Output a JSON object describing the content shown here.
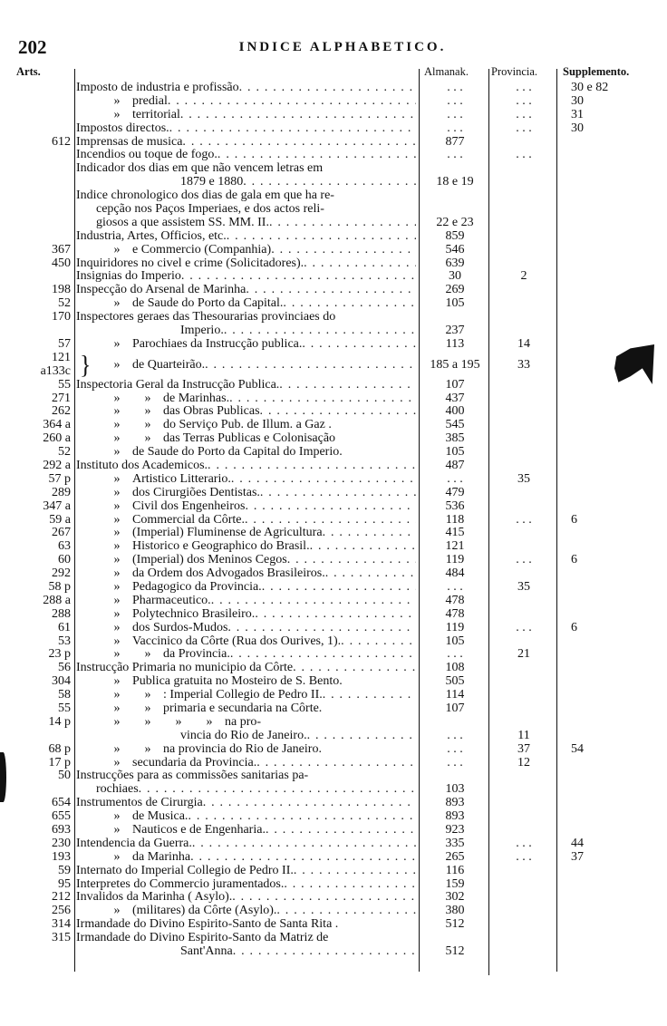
{
  "header": {
    "page_number": "202",
    "title": "INDICE ALPHABETICO."
  },
  "columns": {
    "arts": "Arts.",
    "almanak": "Almanak.",
    "provincia": "Provincia.",
    "supplemento": "Supplemento."
  },
  "rows": [
    {
      "art": "",
      "ditto": [],
      "text": "Imposto de industria e profissão",
      "dots": true,
      "almanak": ". . .",
      "provincia": ". . .",
      "supplemento": "30 e 82"
    },
    {
      "art": "",
      "ditto": [
        "»"
      ],
      "text": "predial",
      "dots": true,
      "almanak": ". . .",
      "provincia": ". . .",
      "supplemento": "30"
    },
    {
      "art": "",
      "ditto": [
        "»"
      ],
      "text": "territorial",
      "dots": true,
      "almanak": ". . .",
      "provincia": ". . .",
      "supplemento": "31"
    },
    {
      "art": "",
      "ditto": [],
      "text": "Impostos directos.",
      "dots": true,
      "almanak": ". . .",
      "provincia": ". . .",
      "supplemento": "30"
    },
    {
      "art": "612",
      "ditto": [],
      "text": "Imprensas de musica",
      "dots": true,
      "almanak": "877"
    },
    {
      "art": "",
      "ditto": [],
      "text": "Incendios ou toque de fogo.",
      "dots": true,
      "almanak": ". . .",
      "provincia": ". . ."
    },
    {
      "art": "",
      "ditto": [],
      "text": "Indicador dos dias em que não vencem letras em",
      "dots": false
    },
    {
      "art": "",
      "ditto": [],
      "text": "1879 e 1880",
      "cont": "deep",
      "dots": true,
      "almanak": "18 e 19"
    },
    {
      "art": "",
      "ditto": [],
      "text": "Indice chronologico dos dias de gala em que ha re-",
      "dots": false
    },
    {
      "art": "",
      "ditto": [],
      "text": "cepção nos Paços Imperiaes, e dos actos reli-",
      "cont": "shallow",
      "dots": false
    },
    {
      "art": "",
      "ditto": [],
      "text": "giosos a que assistem SS. MM. II.",
      "cont": "shallow",
      "dots": true,
      "almanak": "22 e 23"
    },
    {
      "art": "",
      "ditto": [],
      "text": "Industria, Artes, Officios, etc.",
      "dots": true,
      "almanak": "859"
    },
    {
      "art": "367",
      "ditto": [
        "»"
      ],
      "text": "e Commercio (Companhia)",
      "dots": true,
      "almanak": "546"
    },
    {
      "art": "450",
      "ditto": [],
      "text": "Inquiridores no civel e crime (Solicitadores).",
      "dots": true,
      "almanak": "639"
    },
    {
      "art": "",
      "ditto": [],
      "text": "Insignias do Imperio",
      "dots": true,
      "almanak": "30",
      "provincia": "2"
    },
    {
      "art": "198",
      "ditto": [],
      "text": "Inspecção do Arsenal de Marinha",
      "dots": true,
      "almanak": "269"
    },
    {
      "art": "52",
      "ditto": [
        "»"
      ],
      "text": "de Saude do Porto da Capital.",
      "dots": true,
      "almanak": "105"
    },
    {
      "art": "170",
      "ditto": [],
      "text": "Inspectores geraes das Thesourarias provinciaes do",
      "dots": false
    },
    {
      "art": "",
      "ditto": [],
      "text": "Imperio.",
      "cont": "deep",
      "dots": true,
      "almanak": "237"
    },
    {
      "art": "57",
      "ditto": [
        "»"
      ],
      "text": "Parochiaes da Instrucção publica.",
      "dots": true,
      "almanak": "113",
      "provincia": "14"
    },
    {
      "art": "121",
      "art2": "a133c",
      "brace": "}",
      "ditto": [
        "»"
      ],
      "text": "de Quarteirão.",
      "dots": true,
      "almanak": "185 a 195",
      "provincia": "33"
    },
    {
      "art": "55",
      "ditto": [],
      "text": "Inspectoria Geral da Instrucção Publica.",
      "dots": true,
      "almanak": "107"
    },
    {
      "art": "271",
      "ditto": [
        "»",
        "»"
      ],
      "text": "de Marinhas.",
      "dots": true,
      "almanak": "437"
    },
    {
      "art": "262",
      "ditto": [
        "»",
        "»"
      ],
      "text": "das Obras Publicas",
      "dots": true,
      "almanak": "400"
    },
    {
      "art": "364 a",
      "ditto": [
        "»",
        "»"
      ],
      "text": "do Serviço Pub. de Illum. a Gaz .",
      "dots": false,
      "almanak": "545"
    },
    {
      "art": "260 a",
      "ditto": [
        "»",
        "»"
      ],
      "text": "das Terras Publicas e Colonisação",
      "dots": false,
      "almanak": "385"
    },
    {
      "art": "52",
      "ditto": [
        "»"
      ],
      "text": "de Saude do Porto da Capital do Imperio.",
      "dots": false,
      "almanak": "105"
    },
    {
      "art": "292 a",
      "ditto": [],
      "text": "Instituto dos Academicos.",
      "dots": true,
      "almanak": "487"
    },
    {
      "art": "57 p",
      "ditto": [
        "»"
      ],
      "text": "Artistico Litterario.",
      "dots": true,
      "almanak": ". . .",
      "provincia": "35"
    },
    {
      "art": "289",
      "ditto": [
        "»"
      ],
      "text": "dos Cirurgiões Dentistas.",
      "dots": true,
      "almanak": "479"
    },
    {
      "art": "347 a",
      "ditto": [
        "»"
      ],
      "text": "Civil dos Engenheiros",
      "dots": true,
      "almanak": "536"
    },
    {
      "art": "59 a",
      "ditto": [
        "»"
      ],
      "text": "Commercial da Côrte.",
      "dots": true,
      "almanak": "118",
      "provincia": ". . .",
      "supplemento": "6"
    },
    {
      "art": "267",
      "ditto": [
        "»"
      ],
      "text": "(Imperial) Fluminense de Agricultura",
      "dots": true,
      "almanak": "415"
    },
    {
      "art": "63",
      "ditto": [
        "»"
      ],
      "text": "Historico e Geographico do Brasil.",
      "dots": true,
      "almanak": "121"
    },
    {
      "art": "60",
      "ditto": [
        "»"
      ],
      "text": "(Imperial) dos Meninos Cegos",
      "dots": true,
      "almanak": "119",
      "provincia": ". . .",
      "supplemento": "6"
    },
    {
      "art": "292",
      "ditto": [
        "»"
      ],
      "text": "da Ordem dos Advogados Brasileiros.",
      "dots": true,
      "almanak": "484"
    },
    {
      "art": "58 p",
      "ditto": [
        "»"
      ],
      "text": "Pedagogico da Provincia.",
      "dots": true,
      "almanak": ". . .",
      "provincia": "35"
    },
    {
      "art": "288 a",
      "ditto": [
        "»"
      ],
      "text": "Pharmaceutico.",
      "dots": true,
      "almanak": "478"
    },
    {
      "art": "288",
      "ditto": [
        "»"
      ],
      "text": "Polytechnico Brasileiro.",
      "dots": true,
      "almanak": "478"
    },
    {
      "art": "61",
      "ditto": [
        "»"
      ],
      "text": "dos Surdos-Mudos",
      "dots": true,
      "almanak": "119",
      "provincia": ". . .",
      "supplemento": "6"
    },
    {
      "art": "53",
      "ditto": [
        "»"
      ],
      "text": "Vaccinico da Côrte (Rua dos Ourives, 1).",
      "dots": true,
      "almanak": "105"
    },
    {
      "art": "23 p",
      "ditto": [
        "»",
        "»"
      ],
      "text": "da Provincia.",
      "dots": true,
      "almanak": ". . .",
      "provincia": "21"
    },
    {
      "art": "56",
      "ditto": [],
      "text": "Instrucção Primaria no municipio da Côrte",
      "dots": true,
      "almanak": "108"
    },
    {
      "art": "304",
      "ditto": [
        "»"
      ],
      "text": "Publica gratuita no Mosteiro de S. Bento.",
      "dots": false,
      "almanak": "505"
    },
    {
      "art": "58",
      "ditto": [
        "»",
        "»"
      ],
      "text": ": Imperial Collegio de Pedro II.",
      "dots": true,
      "almanak": "114"
    },
    {
      "art": "55",
      "ditto": [
        "»",
        "»"
      ],
      "text": "primaria e secundaria na Côrte.",
      "dots": false,
      "almanak": "107"
    },
    {
      "art": "14 p",
      "ditto": [
        "»",
        "»",
        "»",
        "»"
      ],
      "text": "na pro-",
      "dots": false
    },
    {
      "art": "",
      "ditto": [],
      "text": "vincia do Rio de Janeiro.",
      "cont": "deep",
      "dots": true,
      "almanak": ". . .",
      "provincia": "11"
    },
    {
      "art": "68 p",
      "ditto": [
        "»",
        "»"
      ],
      "text": "na provincia do Rio de Janeiro.",
      "dots": false,
      "almanak": ". . .",
      "provincia": "37",
      "supplemento": "54"
    },
    {
      "art": "17 p",
      "ditto": [
        "»"
      ],
      "text": "secundaria da Provincia.",
      "dots": true,
      "almanak": ". . .",
      "provincia": "12"
    },
    {
      "art": "50",
      "ditto": [],
      "text": "Instrucções para as commissões sanitarias pa-",
      "dots": false
    },
    {
      "art": "",
      "ditto": [],
      "text": "rochiaes",
      "cont": "shallow",
      "dots": true,
      "almanak": "103"
    },
    {
      "art": "654",
      "ditto": [],
      "text": "Instrumentos de Cirurgia",
      "dots": true,
      "almanak": "893"
    },
    {
      "art": "655",
      "ditto": [
        "»"
      ],
      "text": "de Musica.",
      "dots": true,
      "almanak": "893"
    },
    {
      "art": "693",
      "ditto": [
        "»"
      ],
      "text": "Nauticos e de Engenharia.",
      "dots": true,
      "almanak": "923"
    },
    {
      "art": "230",
      "ditto": [],
      "text": "Intendencia da Guerra.",
      "dots": true,
      "almanak": "335",
      "provincia": ". . .",
      "supplemento": "44"
    },
    {
      "art": "193",
      "ditto": [
        "»"
      ],
      "text": "da Marinha",
      "dots": true,
      "almanak": "265",
      "provincia": ". . .",
      "supplemento": "37"
    },
    {
      "art": "59",
      "ditto": [],
      "text": "Internato do Imperial Collegio de Pedro II.",
      "dots": true,
      "almanak": "116"
    },
    {
      "art": "95",
      "ditto": [],
      "text": "Interpretes do Commercio juramentados.",
      "dots": true,
      "almanak": "159"
    },
    {
      "art": "212",
      "ditto": [],
      "text": "Invalidos da Marinha ( Asylo).",
      "dots": true,
      "almanak": "302"
    },
    {
      "art": "256",
      "ditto": [
        "»"
      ],
      "text": "(militares) da Côrte (Asylo).",
      "dots": true,
      "almanak": "380"
    },
    {
      "art": "314",
      "ditto": [],
      "text": "Irmandade do Divino Espirito-Santo de Santa Rita .",
      "dots": false,
      "almanak": "512"
    },
    {
      "art": "315",
      "ditto": [],
      "text": "Irmandade do Divino Espirito-Santo da Matriz de",
      "dots": false
    },
    {
      "art": "",
      "ditto": [],
      "text": "Sant'Anna",
      "cont": "deep",
      "dots": true,
      "almanak": "512"
    }
  ]
}
